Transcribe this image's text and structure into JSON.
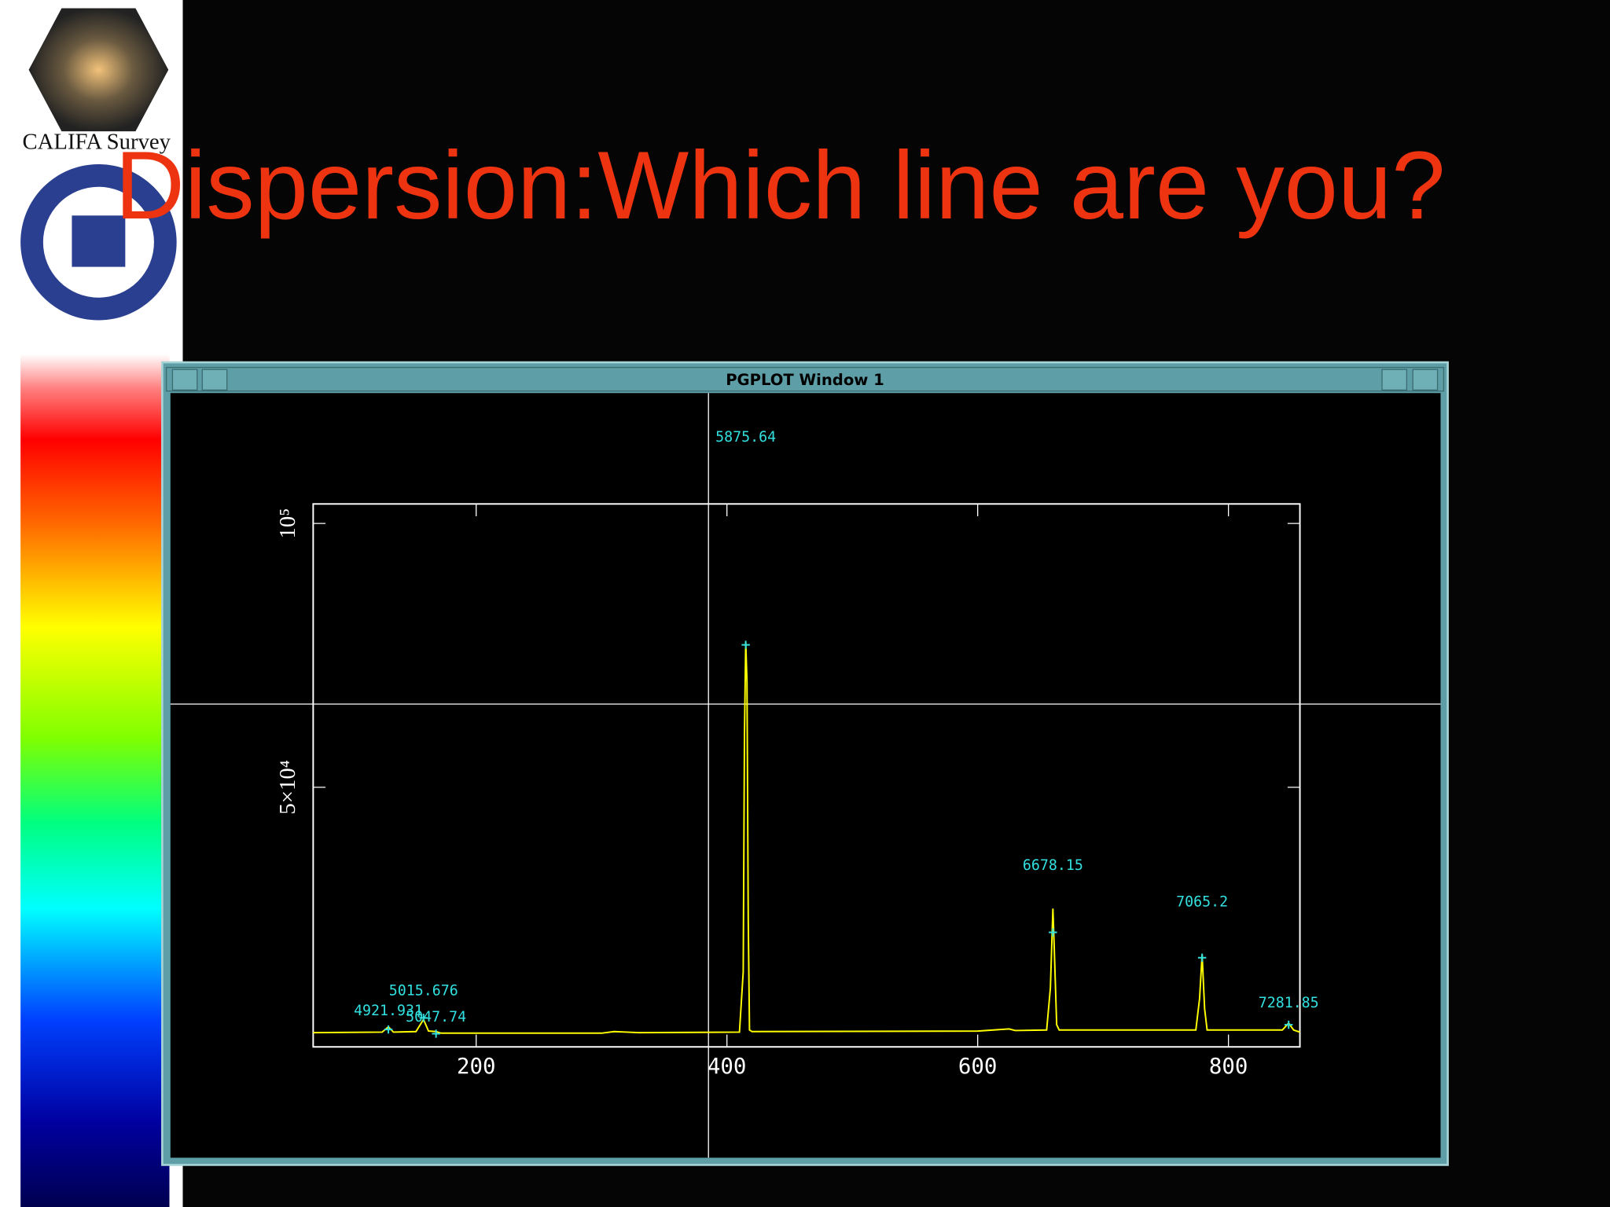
{
  "slide": {
    "title": "Dispersion:Which line are you?",
    "logo_text": "CALIFA Survey"
  },
  "window": {
    "title": "PGPLOT Window 1"
  },
  "chart_data": {
    "type": "line",
    "x": [
      70,
      125,
      130,
      134,
      152,
      158,
      162,
      168,
      172,
      300,
      310,
      320,
      330,
      410,
      413,
      414,
      415,
      416,
      417,
      418,
      420,
      600,
      625,
      630,
      655,
      658,
      660,
      661,
      663,
      665,
      774,
      777,
      779,
      781,
      783,
      843,
      848,
      852,
      857
    ],
    "series": [
      {
        "color": "#ffff00",
        "values": [
          3500,
          3600,
          4600,
          3600,
          3700,
          6000,
          3800,
          3700,
          3400,
          3400,
          3700,
          3600,
          3500,
          3600,
          15000,
          60000,
          77600,
          70000,
          25000,
          4000,
          3700,
          3800,
          4200,
          3900,
          4000,
          12000,
          27000,
          20000,
          5000,
          4000,
          4000,
          10000,
          18300,
          8000,
          4000,
          4000,
          5300,
          4000,
          3600
        ]
      }
    ],
    "xlim": [
      70,
      857
    ],
    "ylim": [
      800,
      103700
    ],
    "xticks": [
      200,
      400,
      600,
      800
    ],
    "yticks": [
      {
        "value": 50000,
        "label": "5×10⁴"
      },
      {
        "value": 100000,
        "label": "10⁵"
      }
    ],
    "annotations": [
      {
        "text": "4921.931",
        "x": 130,
        "y": 4100
      },
      {
        "text": "5015.676",
        "x": 158,
        "y": 6300
      },
      {
        "text": "5047.74",
        "x": 168,
        "y": 3300
      },
      {
        "text": "5875.64",
        "x": 415,
        "y": 77000
      },
      {
        "text": "6678.15",
        "x": 660,
        "y": 22500
      },
      {
        "text": "7065.2",
        "x": 779,
        "y": 17700
      },
      {
        "text": "7281.85",
        "x": 848,
        "y": 5000
      }
    ],
    "annotation_color": "#33e0e0"
  }
}
